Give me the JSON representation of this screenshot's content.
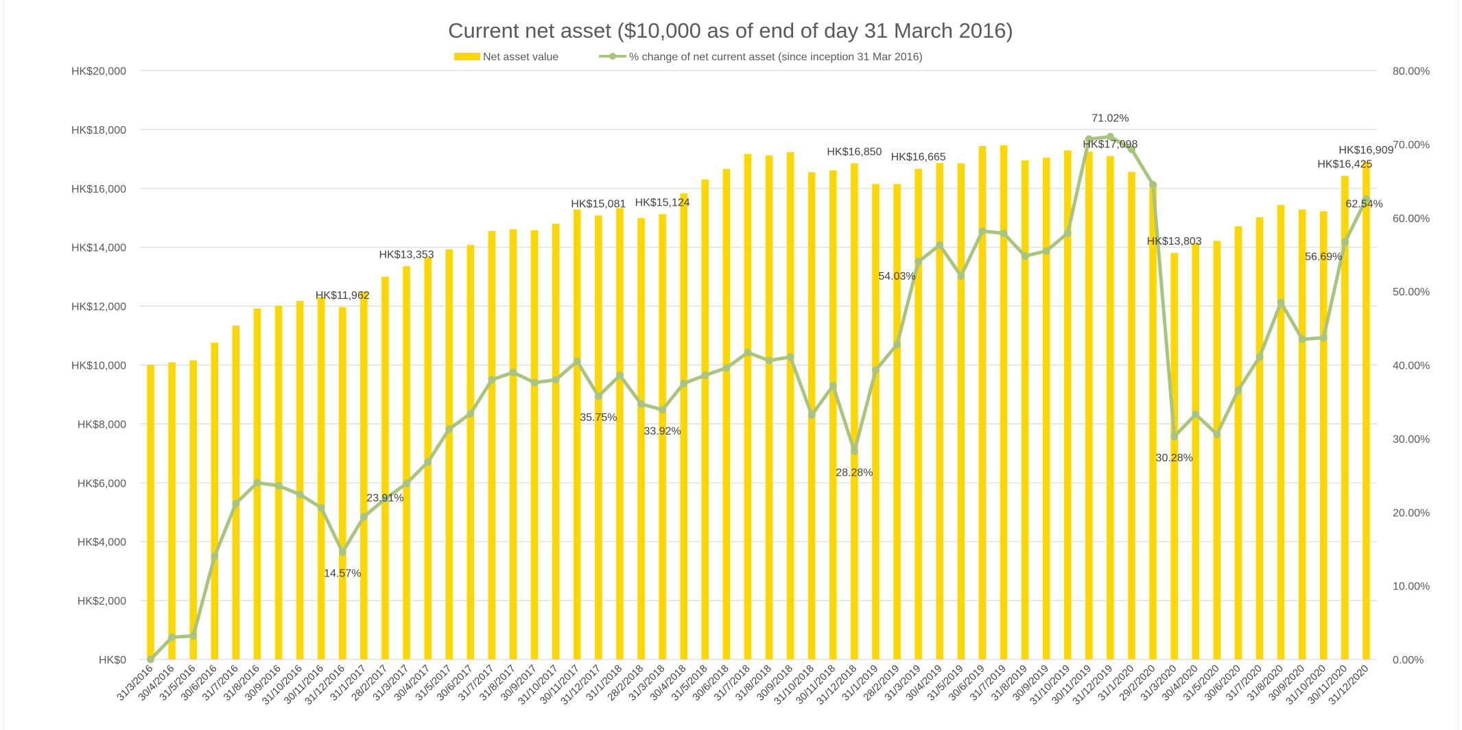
{
  "chart_data": {
    "type": "bar+line",
    "title": "Current net asset ($10,000 as of end of day 31 March 2016)",
    "legend_position": "top",
    "grid": true,
    "colors": {
      "bar": "#FFD700",
      "line": "#A9C47F",
      "text": "#595959",
      "grid": "#D9D9D9"
    },
    "y_left": {
      "min": 0,
      "max": 20000,
      "step": 2000,
      "ticks": [
        "HK$0",
        "HK$2,000",
        "HK$4,000",
        "HK$6,000",
        "HK$8,000",
        "HK$10,000",
        "HK$12,000",
        "HK$14,000",
        "HK$16,000",
        "HK$18,000",
        "HK$20,000"
      ]
    },
    "y_right": {
      "min": 0,
      "max": 80,
      "step": 10,
      "ticks": [
        "0.00%",
        "10.00%",
        "20.00%",
        "30.00%",
        "40.00%",
        "50.00%",
        "60.00%",
        "70.00%",
        "80.00%"
      ]
    },
    "categories": [
      "31/3/2016",
      "30/4/2016",
      "31/5/2016",
      "30/6/2016",
      "31/7/2016",
      "31/8/2016",
      "30/9/2016",
      "31/10/2016",
      "30/11/2016",
      "31/12/2016",
      "31/1/2017",
      "28/2/2017",
      "31/3/2017",
      "30/4/2017",
      "31/5/2017",
      "30/6/2017",
      "31/7/2017",
      "31/8/2017",
      "30/9/2017",
      "31/10/2017",
      "30/11/2017",
      "31/12/2017",
      "31/1/2018",
      "28/2/2018",
      "31/3/2018",
      "30/4/2018",
      "31/5/2018",
      "30/6/2018",
      "31/7/2018",
      "31/8/2018",
      "30/9/2018",
      "31/10/2018",
      "30/11/2018",
      "31/12/2018",
      "31/1/2019",
      "28/2/2019",
      "31/3/2019",
      "30/4/2019",
      "31/5/2019",
      "30/6/2019",
      "31/7/2019",
      "31/8/2019",
      "30/9/2019",
      "31/10/2019",
      "30/11/2019",
      "31/12/2019",
      "31/1/2020",
      "29/2/2020",
      "31/3/2020",
      "30/4/2020",
      "31/5/2020",
      "30/6/2020",
      "31/7/2020",
      "31/8/2020",
      "30/9/2020",
      "31/10/2020",
      "30/11/2020",
      "31/12/2020"
    ],
    "series": [
      {
        "name": "Net asset value",
        "type": "bar",
        "axis": "left",
        "values": [
          10000,
          10090,
          10160,
          10760,
          11340,
          11920,
          12010,
          12180,
          12310,
          11962,
          12500,
          13000,
          13353,
          13650,
          13930,
          14080,
          14550,
          14610,
          14580,
          14800,
          15280,
          15081,
          15330,
          14990,
          15124,
          15830,
          16300,
          16660,
          17170,
          17120,
          17230,
          16550,
          16610,
          16850,
          16150,
          16150,
          16665,
          16860,
          16850,
          17440,
          17460,
          16950,
          17040,
          17290,
          17250,
          17098,
          16560,
          16150,
          13803,
          14140,
          14220,
          14710,
          15020,
          15440,
          15280,
          15220,
          16425,
          16909
        ],
        "data_labels": {
          "9": "HK$11,962",
          "12": "HK$13,353",
          "21": "HK$15,081",
          "24": "HK$15,124",
          "33": "HK$16,850",
          "36": "HK$16,665",
          "45": "HK$17,098",
          "48": "HK$13,803",
          "56": "HK$16,425",
          "57": "HK$16,909"
        }
      },
      {
        "name": "% change of net current asset (since inception 31 Mar 2016)",
        "type": "line",
        "axis": "right",
        "values": [
          0.0,
          3.0,
          3.2,
          14.0,
          21.2,
          24.0,
          23.6,
          22.4,
          20.6,
          14.57,
          19.4,
          21.8,
          23.91,
          26.8,
          31.3,
          33.4,
          38.0,
          39.0,
          37.6,
          38.0,
          40.5,
          35.75,
          38.6,
          34.7,
          33.92,
          37.5,
          38.6,
          39.6,
          41.7,
          40.6,
          41.1,
          33.2,
          37.2,
          28.28,
          39.3,
          42.8,
          54.03,
          56.3,
          52.1,
          58.2,
          57.9,
          54.8,
          55.5,
          57.9,
          70.7,
          71.02,
          69.3,
          64.5,
          30.28,
          33.3,
          30.6,
          36.6,
          41.1,
          48.5,
          43.5,
          43.7,
          56.69,
          62.54
        ],
        "data_labels": {
          "9": "14.57%",
          "12": "23.91%",
          "21": "35.75%",
          "24": "33.92%",
          "33": "28.28%",
          "36": "54.03%",
          "45": "71.02%",
          "48": "30.28%",
          "56": "56.69%",
          "57": "62.54%"
        }
      }
    ]
  }
}
